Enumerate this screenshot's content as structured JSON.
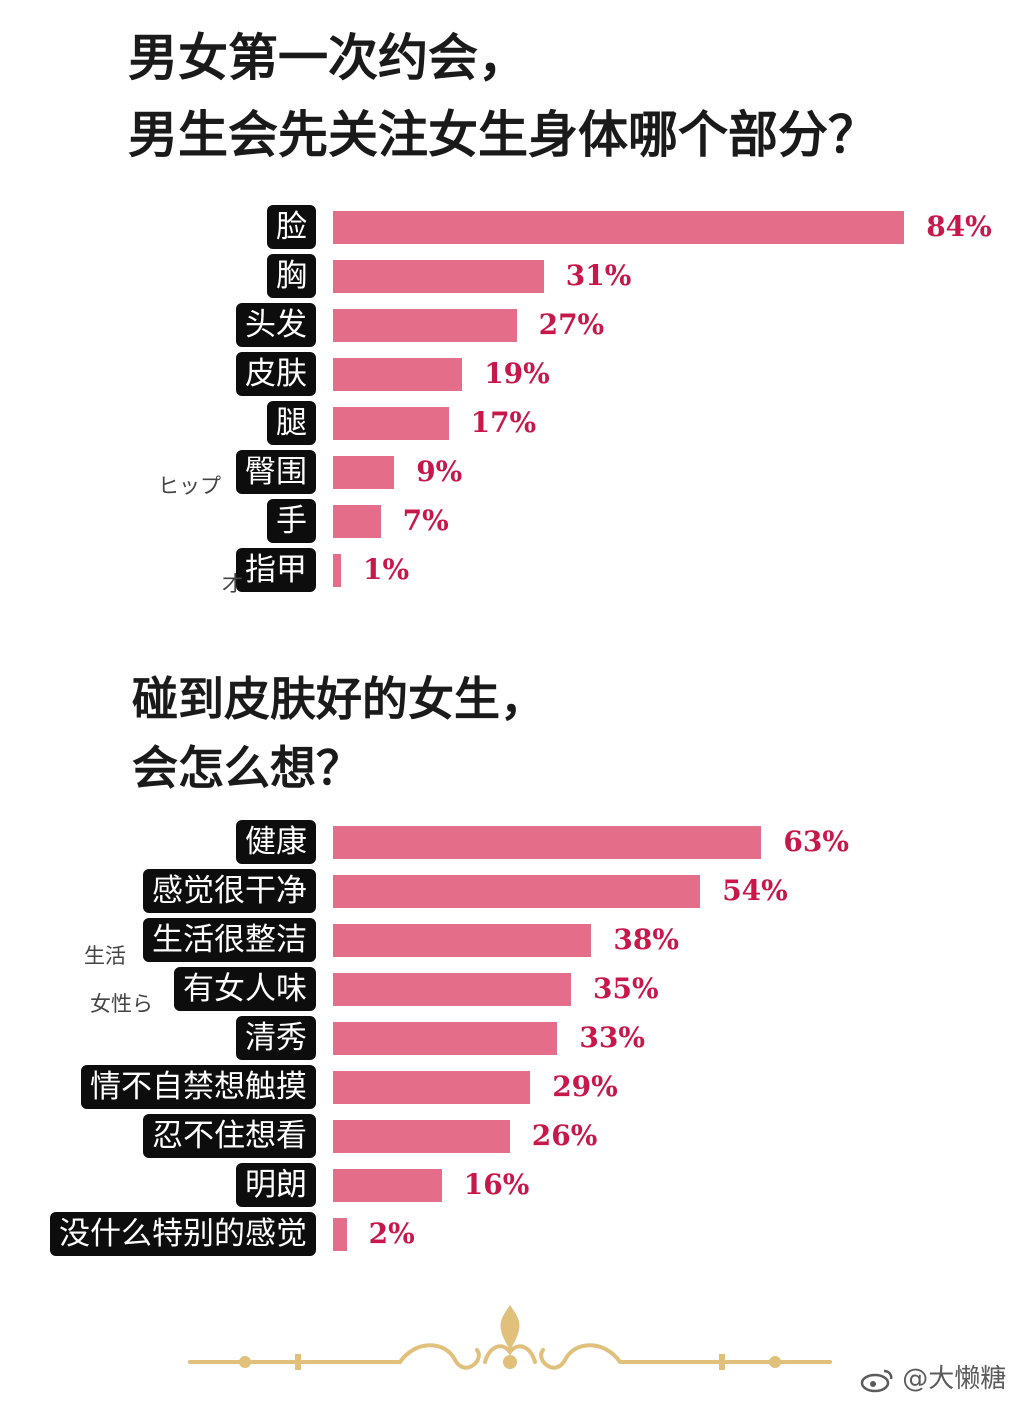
{
  "titles": {
    "chart1_line1": "男女第一次约会，",
    "chart1_line2": "男生会先关注女生身体哪个部分？",
    "chart2_line1": "碰到皮肤好的女生，",
    "chart2_line2": "会怎么想？"
  },
  "side_text": {
    "hip": "ヒップ",
    "c1_row8_fragment": "才",
    "c2_row3_fragment": "生活",
    "c2_row4_fragment": "女性ら"
  },
  "watermark": "@大懒糖",
  "colors": {
    "bar": "#e46d89",
    "value_text": "#c8174a",
    "label_bg": "#0d0d0d",
    "ornament": "#e0c07a"
  },
  "chart_data": [
    {
      "type": "bar",
      "orientation": "horizontal",
      "title": "男女第一次约会，男生会先关注女生身体哪个部分？",
      "categories": [
        "脸",
        "胸",
        "头发",
        "皮肤",
        "腿",
        "臀围",
        "手",
        "指甲"
      ],
      "values": [
        84,
        31,
        27,
        19,
        17,
        9,
        7,
        1
      ],
      "value_labels": [
        "84%",
        "31%",
        "27%",
        "19%",
        "17%",
        "9%",
        "7%",
        "1%"
      ],
      "unit": "%",
      "xlim": [
        0,
        100
      ],
      "grid": false,
      "legend": "none"
    },
    {
      "type": "bar",
      "orientation": "horizontal",
      "title": "碰到皮肤好的女生，会怎么想？",
      "categories": [
        "健康",
        "感觉很干净",
        "生活很整洁",
        "有女人味",
        "清秀",
        "情不自禁想触摸",
        "忍不住想看",
        "明朗",
        "没什么特别的感觉"
      ],
      "values": [
        63,
        54,
        38,
        35,
        33,
        29,
        26,
        16,
        2
      ],
      "value_labels": [
        "63%",
        "54%",
        "38%",
        "35%",
        "33%",
        "29%",
        "26%",
        "16%",
        "2%"
      ],
      "unit": "%",
      "xlim": [
        0,
        100
      ],
      "grid": false,
      "legend": "none"
    }
  ]
}
